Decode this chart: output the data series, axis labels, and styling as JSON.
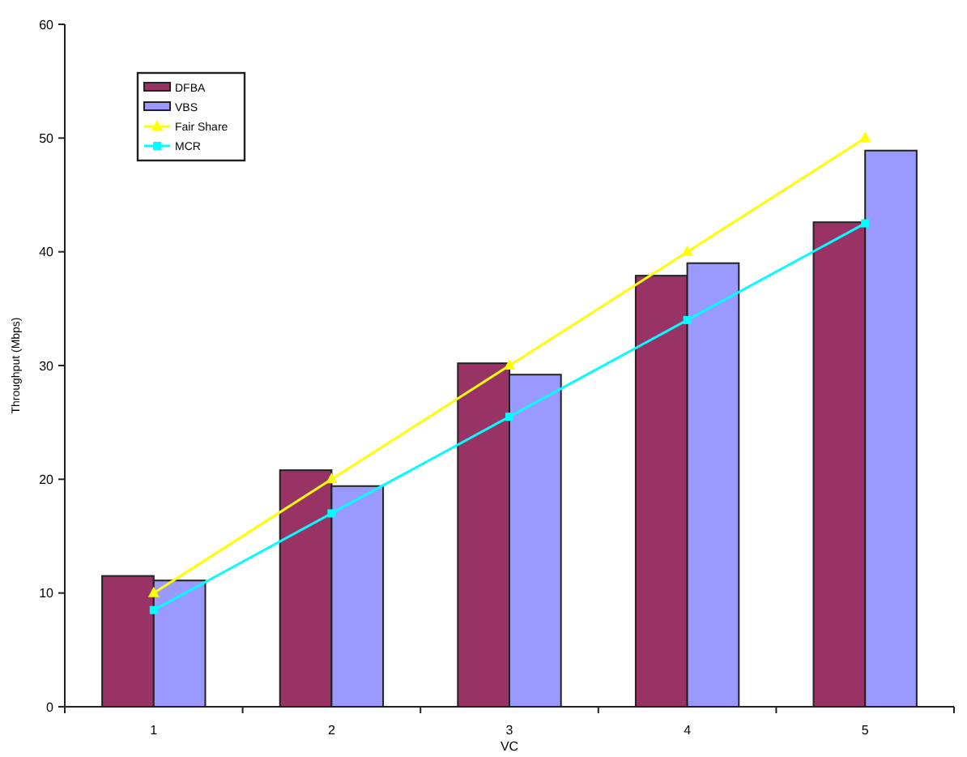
{
  "chart_data": {
    "type": "bar",
    "xlabel": "VC",
    "ylabel": "Throughput (Mbps)",
    "categories": [
      "1",
      "2",
      "3",
      "4",
      "5"
    ],
    "series": [
      {
        "name": "DFBA",
        "color": "#993366",
        "values": [
          11.5,
          20.8,
          30.2,
          37.9,
          42.6
        ]
      },
      {
        "name": "VBS",
        "color": "#9999ff",
        "values": [
          11.1,
          19.4,
          29.2,
          39.0,
          48.9
        ]
      },
      {
        "name": "Fair Share",
        "type": "line",
        "color": "#ffff00",
        "marker": "triangle",
        "values": [
          10,
          20,
          30,
          40,
          50
        ]
      },
      {
        "name": "MCR",
        "type": "line",
        "color": "#00ffff",
        "marker": "square",
        "values": [
          8.5,
          17,
          25.5,
          34,
          42.5
        ]
      }
    ],
    "ylim": [
      0,
      60
    ],
    "yticks": [
      0,
      10,
      20,
      30,
      40,
      50,
      60
    ],
    "grid": false,
    "legend": "top left"
  }
}
